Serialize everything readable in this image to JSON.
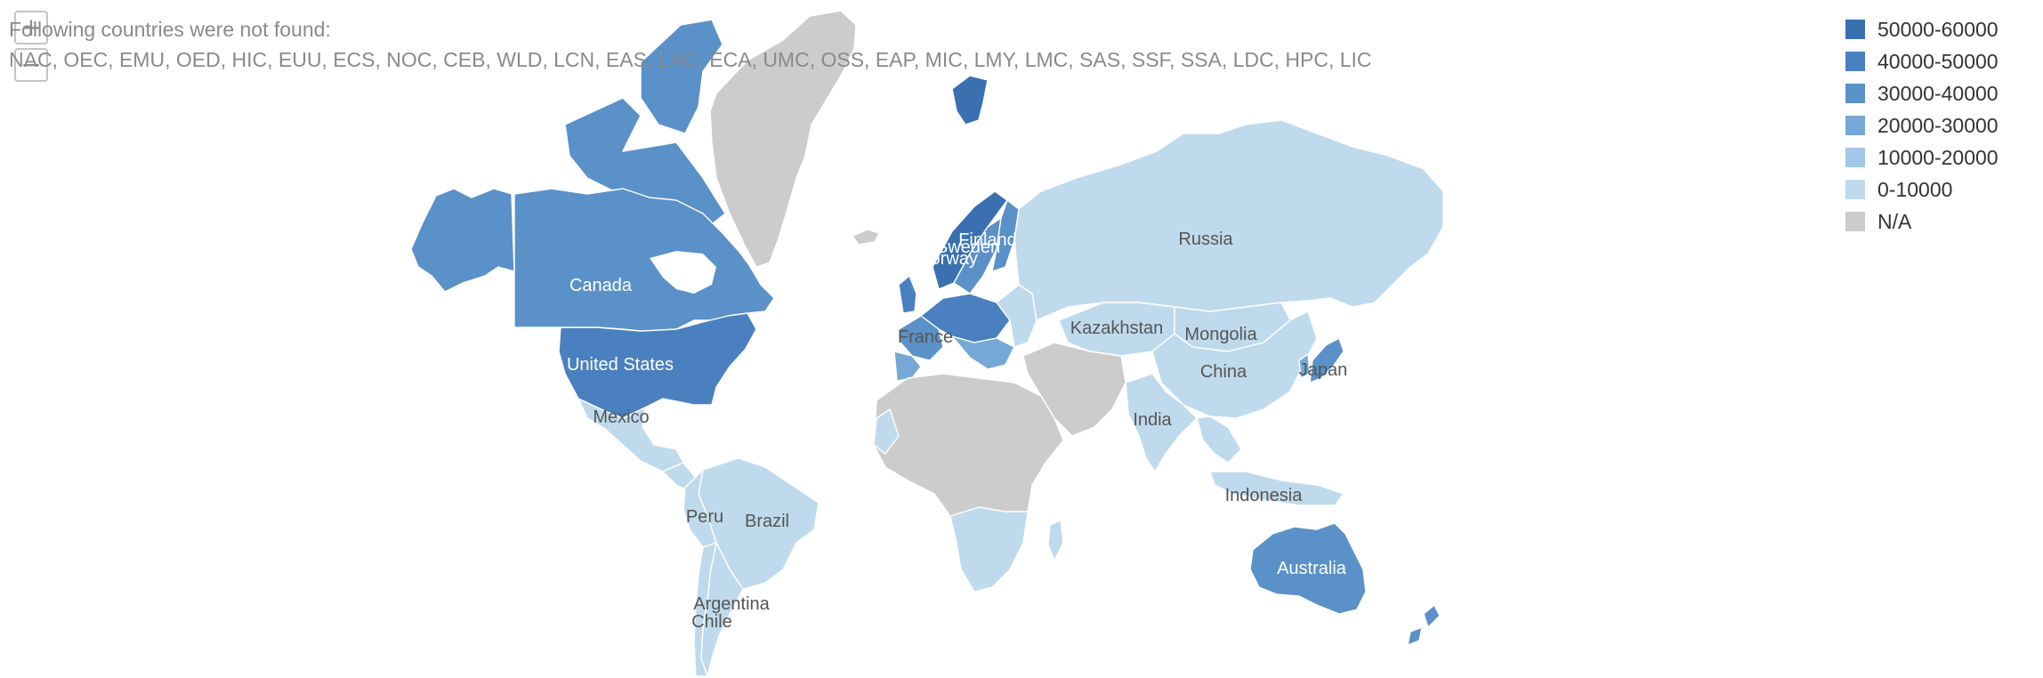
{
  "notice": {
    "title": "Following countries were not found:",
    "codes": "NAC, OEC, EMU, OED, HIC, EUU, ECS, NOC, CEB, WLD, LCN, EAS, LAC, ECA, UMC, OSS, EAP, MIC, LMY, LMC, SAS, SSF, SSA, LDC, HPC, LIC"
  },
  "zoom": {
    "in_icon": "plus-icon",
    "out_icon": "minus-icon",
    "in_symbol": "+",
    "out_symbol": "−"
  },
  "legend": [
    {
      "label": "50000-60000",
      "color": "#3a70b0"
    },
    {
      "label": "40000-50000",
      "color": "#4a80bf"
    },
    {
      "label": "30000-40000",
      "color": "#5a91c8"
    },
    {
      "label": "20000-30000",
      "color": "#76a8d6"
    },
    {
      "label": "10000-20000",
      "color": "#a3c7e6"
    },
    {
      "label": "0-10000",
      "color": "#bfdaec"
    },
    {
      "label": "N/A",
      "color": "#cccccc"
    }
  ],
  "labels": {
    "canada": "Canada",
    "united_states": "United States",
    "mexico": "Mexico",
    "peru": "Peru",
    "brazil": "Brazil",
    "argentina": "Argentina",
    "chile": "Chile",
    "france": "France",
    "sweden": "Sweden",
    "norway": "Norway",
    "finland": "Finland",
    "russia": "Russia",
    "kazakhstan": "Kazakhstan",
    "mongolia": "Mongolia",
    "china": "China",
    "japan": "Japan",
    "india": "India",
    "indonesia": "Indonesia",
    "australia": "Australia"
  }
}
